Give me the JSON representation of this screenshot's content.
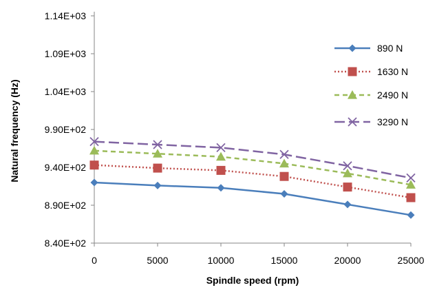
{
  "chart_data": {
    "type": "line",
    "xlabel": "Spindle speed (rpm)",
    "ylabel": "Natural frequency (Hz)",
    "x": [
      0,
      5000,
      10000,
      15000,
      20000,
      25000
    ],
    "x_tick_labels": [
      "0",
      "5000",
      "10000",
      "15000",
      "20000",
      "25000"
    ],
    "ylim": [
      840,
      1140
    ],
    "y_ticks": [
      840,
      890,
      940,
      990,
      1040,
      1090,
      1140
    ],
    "y_tick_labels": [
      "8.40E+02",
      "8.90E+02",
      "9.40E+02",
      "9.90E+02",
      "1.04E+03",
      "1.09E+03",
      "1.14E+03"
    ],
    "grid": false,
    "legend_position": "right",
    "series": [
      {
        "name": "890 N",
        "values": [
          920,
          916,
          913,
          905,
          891,
          877
        ],
        "color": "#4A7EBB",
        "line_style": "solid",
        "marker": "diamond"
      },
      {
        "name": "1630 N",
        "values": [
          943,
          939,
          936,
          928,
          914,
          900
        ],
        "color": "#C0504D",
        "line_style": "dotted",
        "marker": "square"
      },
      {
        "name": "2490 N",
        "values": [
          962,
          958,
          954,
          945,
          932,
          917
        ],
        "color": "#9BBB59",
        "line_style": "dashed",
        "marker": "triangle"
      },
      {
        "name": "3290 N",
        "values": [
          974,
          970,
          966,
          957,
          942,
          926
        ],
        "color": "#8064A2",
        "line_style": "long-dash",
        "marker": "x"
      }
    ]
  }
}
